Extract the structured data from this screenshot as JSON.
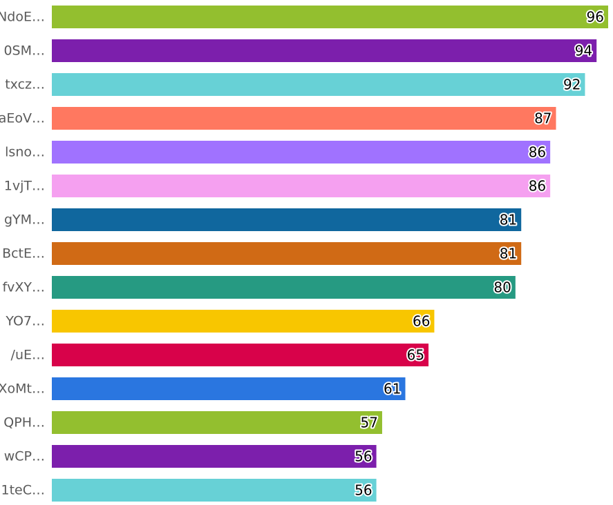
{
  "chart_data": {
    "type": "bar",
    "orientation": "horizontal",
    "categories": [
      "NdoE…",
      "0SM…",
      "txcz…",
      "aEoV…",
      "lsno…",
      "1vjT…",
      "gYM…",
      "BctE…",
      "fvXY…",
      "YO7…",
      "/uE…",
      "XoMt…",
      "QPH…",
      "wCP…",
      "1teC…"
    ],
    "values": [
      96,
      94,
      92,
      87,
      86,
      86,
      81,
      81,
      80,
      66,
      65,
      61,
      57,
      56,
      56
    ],
    "colors": [
      "#93bf2f",
      "#7c1fac",
      "#67d1d6",
      "#ff7860",
      "#a072ff",
      "#f5a0f0",
      "#10679e",
      "#d06a15",
      "#269a82",
      "#f8c600",
      "#d8024a",
      "#2a76e0",
      "#93bf2f",
      "#7c1fac",
      "#67d1d6"
    ],
    "xlim": [
      0,
      96
    ],
    "grid": false,
    "legend": "none",
    "title": "",
    "xlabel": "",
    "ylabel": ""
  }
}
